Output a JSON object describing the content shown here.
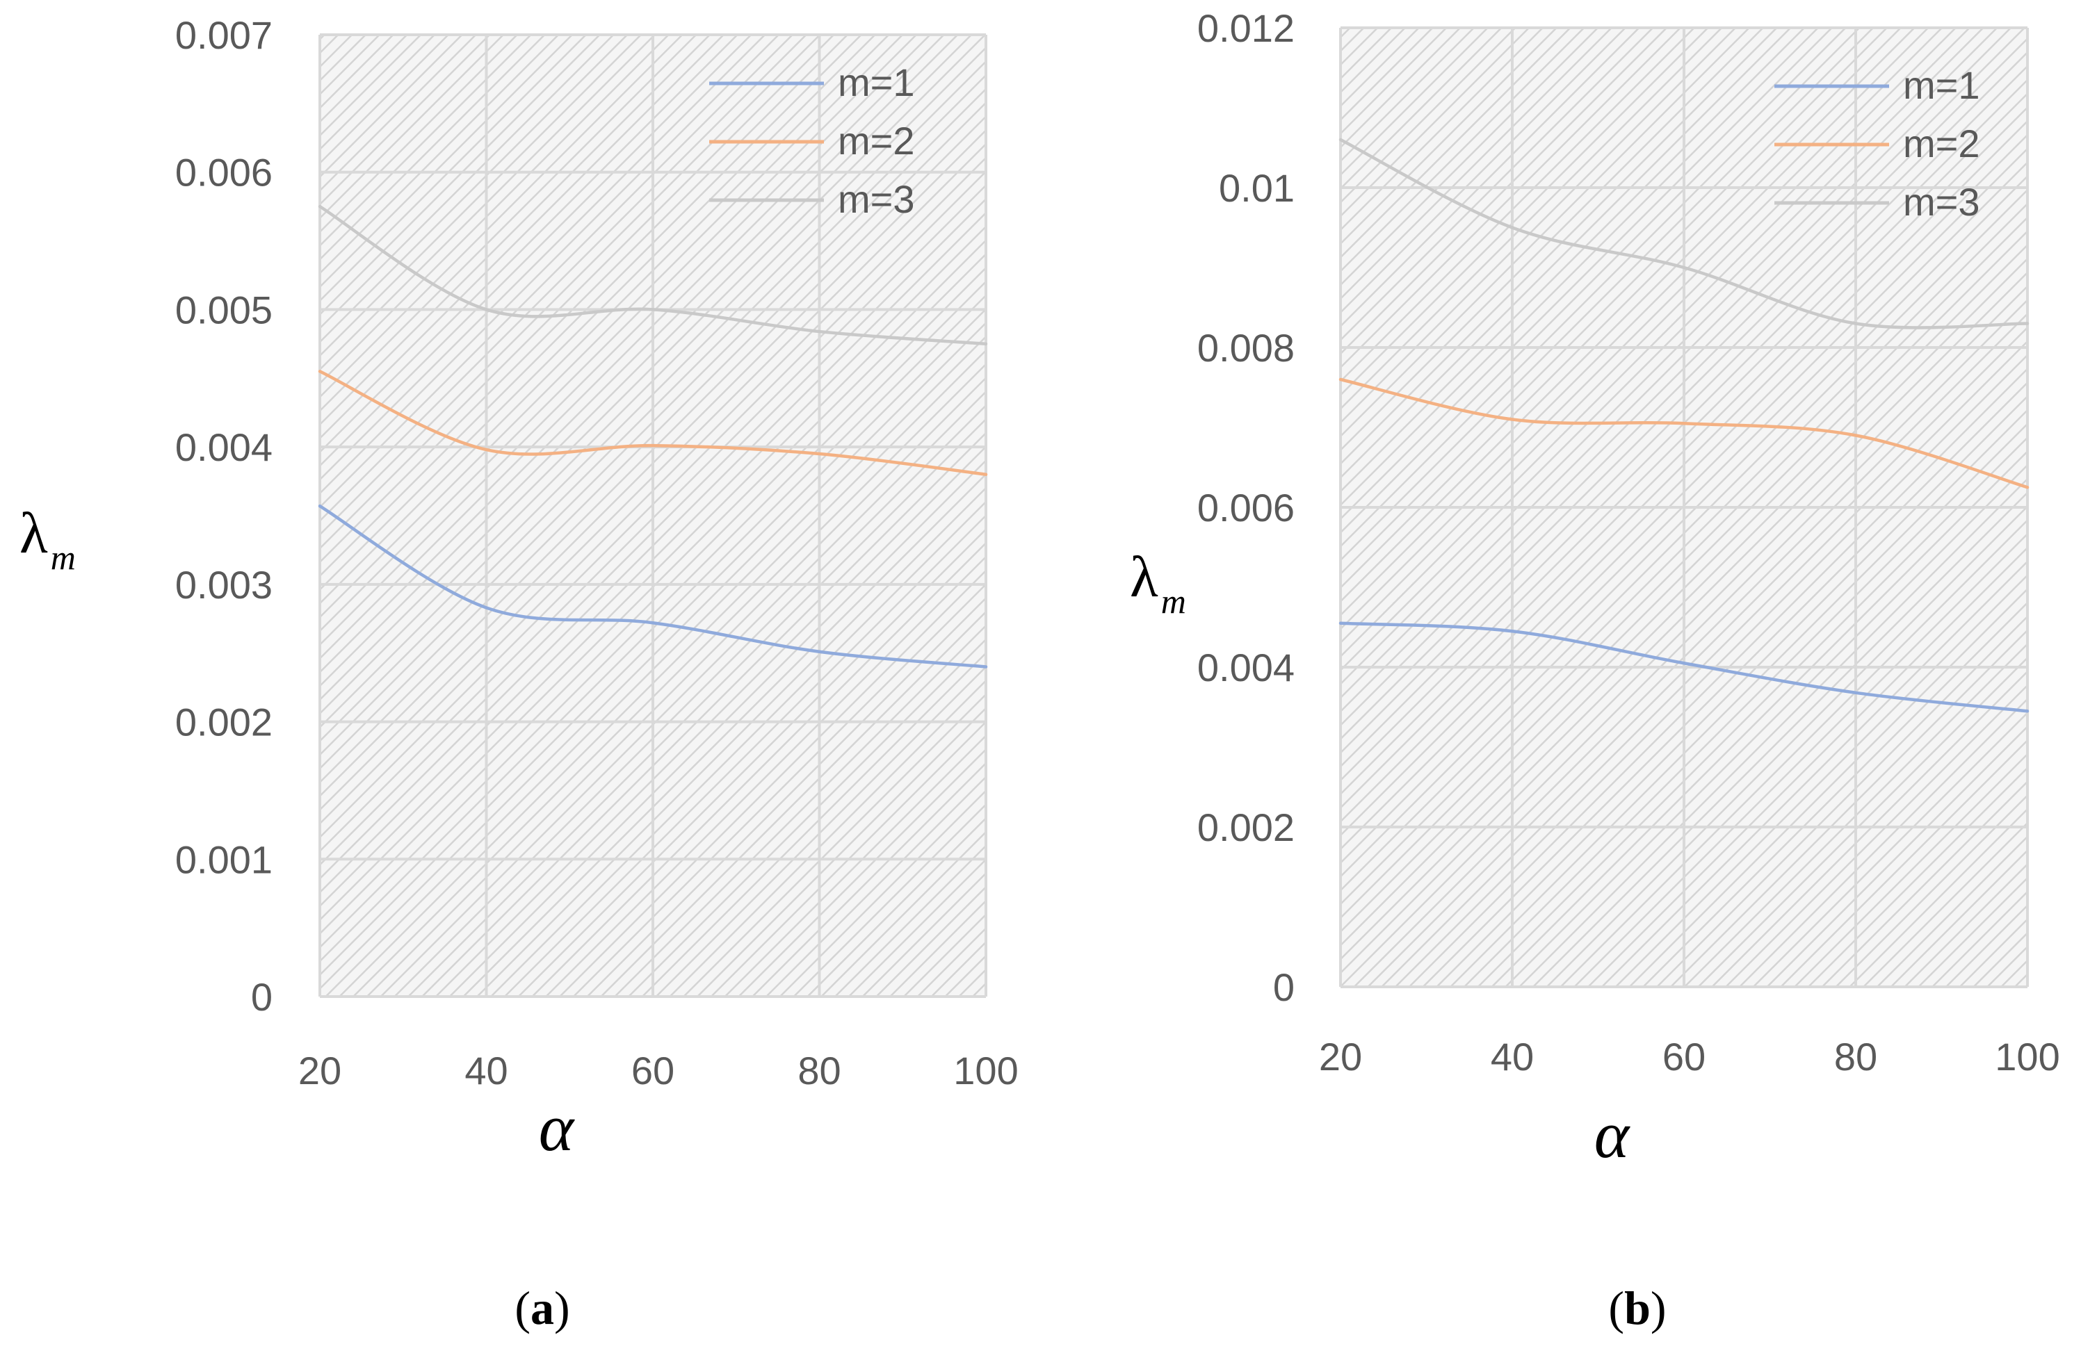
{
  "colors": {
    "m1": "#8faadc",
    "m2": "#f4b183",
    "m3": "#c9c9c9",
    "grid": "#d9d9d9",
    "hatch": "#d4d4d4",
    "text": "#595959"
  },
  "chart_data": [
    {
      "type": "line",
      "panel_label": "a",
      "title": "",
      "xlabel": "α",
      "ylabel": "λ",
      "ylabel_sub": "m",
      "x": [
        20,
        40,
        60,
        80,
        100
      ],
      "xlim": [
        20,
        100
      ],
      "ylim": [
        0,
        0.007
      ],
      "x_ticks": [
        "20",
        "40",
        "60",
        "80",
        "100"
      ],
      "y_ticks": [
        "0",
        "0.001",
        "0.002",
        "0.003",
        "0.004",
        "0.005",
        "0.006",
        "0.007"
      ],
      "grid": true,
      "legend_position": "top-right",
      "series": [
        {
          "name": "m=1",
          "values": [
            0.00357,
            0.00283,
            0.00272,
            0.00251,
            0.0024
          ]
        },
        {
          "name": "m=2",
          "values": [
            0.00455,
            0.00398,
            0.00401,
            0.00395,
            0.0038
          ]
        },
        {
          "name": "m=3",
          "values": [
            0.00575,
            0.005,
            0.005,
            0.00484,
            0.00475
          ]
        }
      ]
    },
    {
      "type": "line",
      "panel_label": "b",
      "title": "",
      "xlabel": "α",
      "ylabel": "λ",
      "ylabel_sub": "m",
      "x": [
        20,
        40,
        60,
        80,
        100
      ],
      "xlim": [
        20,
        100
      ],
      "ylim": [
        0,
        0.012
      ],
      "x_ticks": [
        "20",
        "40",
        "60",
        "80",
        "100"
      ],
      "y_ticks": [
        "0",
        "0.002",
        "0.004",
        "0.006",
        "0.008",
        "0.01",
        "0.012"
      ],
      "grid": true,
      "legend_position": "top-right",
      "series": [
        {
          "name": "m=1",
          "values": [
            0.00455,
            0.00445,
            0.00405,
            0.00368,
            0.00345
          ]
        },
        {
          "name": "m=2",
          "values": [
            0.0076,
            0.0071,
            0.00705,
            0.0069,
            0.00625
          ]
        },
        {
          "name": "m=3",
          "values": [
            0.0106,
            0.0095,
            0.009,
            0.0083,
            0.0083
          ]
        }
      ]
    }
  ]
}
